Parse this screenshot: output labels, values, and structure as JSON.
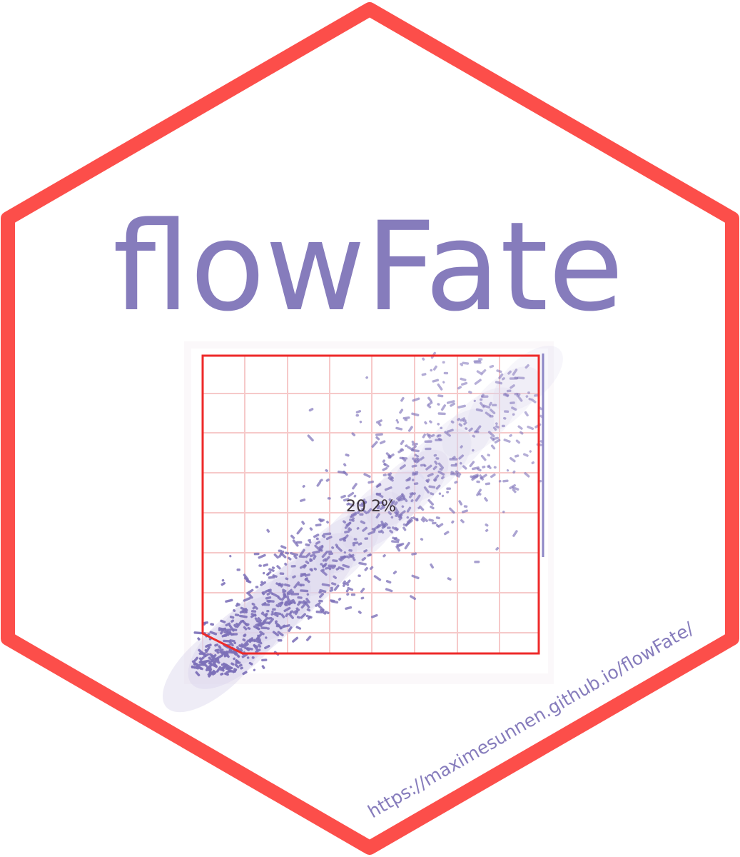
{
  "logo": {
    "title": "flowFate",
    "url": "https://maximesunnen.github.io/flowFate/",
    "gate_percentage": "20 2%"
  },
  "colors": {
    "hex_border": "#fc4e4a",
    "text": "#867cbc",
    "dots": "#7c70b8",
    "gate": "#ee2a2a",
    "grid": "#f6c9c9"
  },
  "icons": {
    "plot": "flow-cytometry-scatter-plot-icon"
  }
}
